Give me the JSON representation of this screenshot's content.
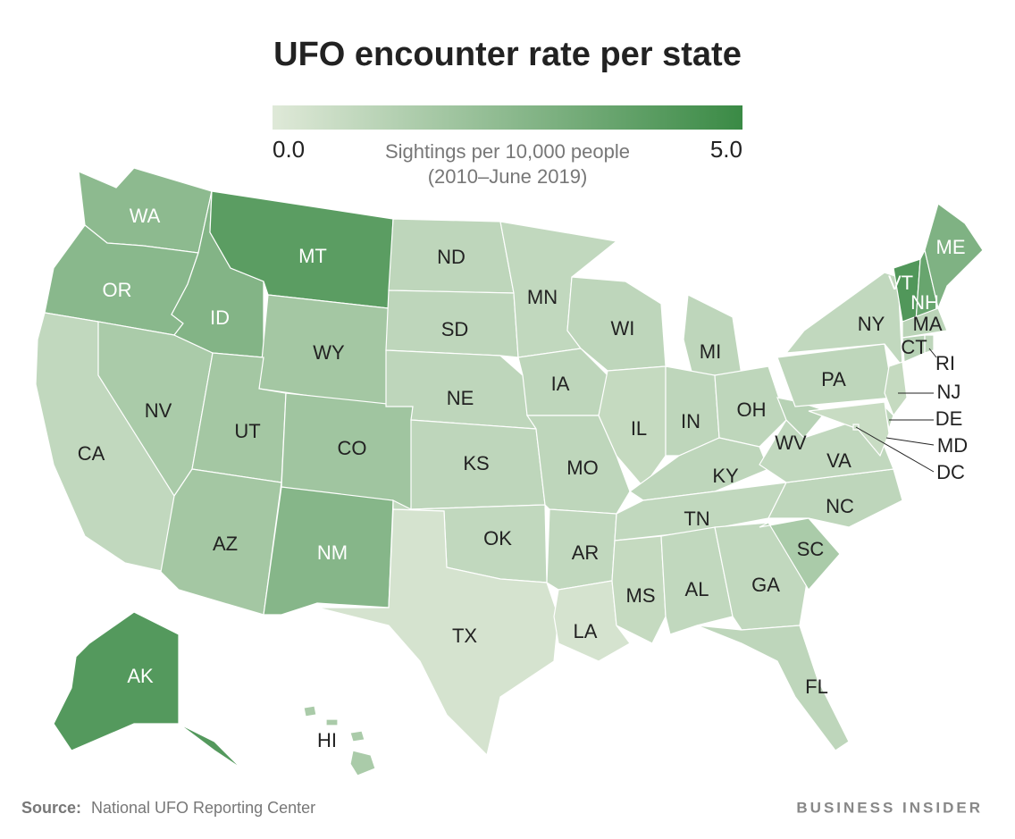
{
  "chart_data": {
    "type": "choropleth",
    "title": "UFO encounter rate per state",
    "colorbar_label": "Sightings per 10,000 people",
    "colorbar_sublabel": "(2010–June 2019)",
    "clim": [
      0,
      5
    ],
    "cticks": [
      {
        "value": 0,
        "label": "0.0"
      },
      {
        "value": 5,
        "label": "5.0"
      }
    ],
    "color_range": [
      "#dfe9d8",
      "#3a8a45"
    ],
    "categories": [
      "WA",
      "OR",
      "CA",
      "NV",
      "ID",
      "MT",
      "WY",
      "UT",
      "CO",
      "AZ",
      "NM",
      "ND",
      "SD",
      "NE",
      "KS",
      "OK",
      "TX",
      "MN",
      "IA",
      "MO",
      "AR",
      "LA",
      "WI",
      "IL",
      "MI",
      "IN",
      "OH",
      "KY",
      "TN",
      "MS",
      "AL",
      "GA",
      "FL",
      "SC",
      "NC",
      "VA",
      "WV",
      "PA",
      "NY",
      "VT",
      "NH",
      "ME",
      "MA",
      "CT",
      "RI",
      "NJ",
      "DE",
      "MD",
      "DC",
      "AK",
      "HI"
    ],
    "values": [
      2.5,
      2.6,
      0.9,
      1.6,
      2.8,
      4.0,
      1.8,
      1.8,
      1.9,
      1.8,
      2.7,
      1.0,
      1.0,
      1.0,
      1.0,
      0.9,
      0.3,
      0.9,
      1.0,
      1.0,
      0.9,
      0.3,
      1.0,
      0.8,
      1.0,
      1.0,
      1.0,
      1.0,
      0.9,
      0.8,
      0.9,
      0.9,
      1.0,
      1.6,
      1.0,
      0.9,
      1.2,
      1.0,
      0.9,
      4.3,
      3.6,
      2.9,
      1.1,
      1.2,
      1.0,
      0.8,
      1.0,
      0.7,
      0.6,
      4.2,
      1.6
    ]
  },
  "footer": {
    "source_label": "Source:",
    "source": "National UFO Reporting Center",
    "brand": "BUSINESS INSIDER"
  }
}
